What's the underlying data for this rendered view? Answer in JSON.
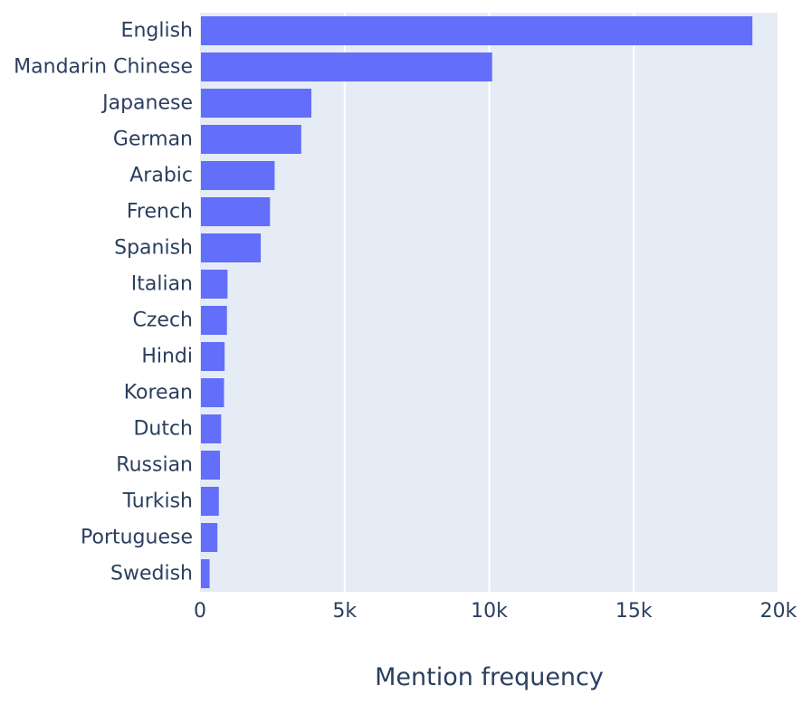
{
  "chart_data": {
    "type": "bar",
    "orientation": "horizontal",
    "categories": [
      "English",
      "Mandarin Chinese",
      "Japanese",
      "German",
      "Arabic",
      "French",
      "Spanish",
      "Italian",
      "Czech",
      "Hindi",
      "Korean",
      "Dutch",
      "Russian",
      "Turkish",
      "Portuguese",
      "Swedish"
    ],
    "values": [
      19100,
      10100,
      3850,
      3500,
      2580,
      2420,
      2100,
      950,
      930,
      850,
      830,
      730,
      690,
      650,
      600,
      330
    ],
    "title": "",
    "xlabel": "Mention frequency",
    "ylabel": "",
    "xlim": [
      0,
      20000
    ],
    "xticks": [
      0,
      5000,
      10000,
      15000,
      20000
    ],
    "xtick_labels": [
      "0",
      "5k",
      "10k",
      "15k",
      "20k"
    ],
    "grid": true,
    "legend": "none",
    "colors": {
      "bar": "#636efa",
      "plot_background": "#e5ecf6",
      "gridline": "#ffffff",
      "text": "#2a3f5f"
    }
  }
}
